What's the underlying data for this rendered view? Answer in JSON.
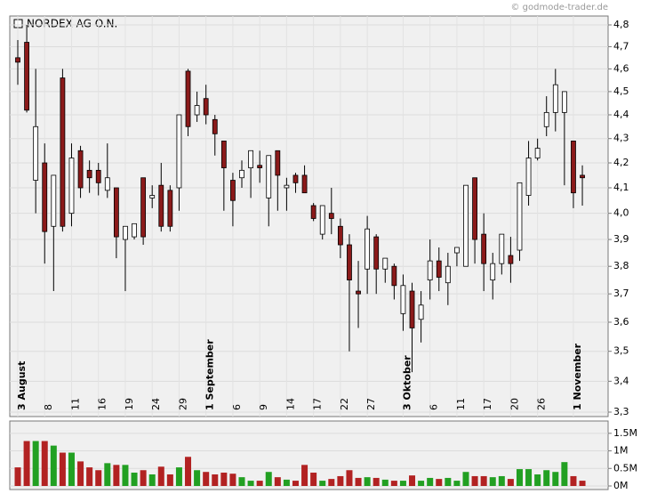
{
  "chart_data": [
    {
      "type": "candlestick",
      "name": "NORDEX AG O.N.",
      "watermark": "© godmode-trader.de",
      "log_scale": true,
      "grid": true,
      "color_up": "#ffffff",
      "color_down": "#8b1a1a",
      "outline": "#000000",
      "categories": [
        "3 August",
        null,
        null,
        "8",
        null,
        null,
        "11",
        null,
        null,
        "16",
        null,
        null,
        "19",
        null,
        null,
        "24",
        null,
        null,
        "29",
        null,
        null,
        "1 September",
        null,
        null,
        "6",
        null,
        null,
        "9",
        null,
        null,
        "14",
        null,
        null,
        "17",
        null,
        null,
        "22",
        null,
        null,
        "27",
        null,
        null,
        null,
        "3 Oktober",
        null,
        null,
        "6",
        null,
        null,
        "11",
        null,
        null,
        "17",
        null,
        null,
        "20",
        null,
        null,
        "26",
        null,
        null,
        null,
        "1 November",
        null
      ],
      "open": [
        4.65,
        4.72,
        4.13,
        4.2,
        3.95,
        4.56,
        4.0,
        4.25,
        4.17,
        4.17,
        4.09,
        4.1,
        3.9,
        3.91,
        4.14,
        4.06,
        4.11,
        4.09,
        4.1,
        4.59,
        4.4,
        4.47,
        4.38,
        4.29,
        4.13,
        4.14,
        4.18,
        4.19,
        4.06,
        4.25,
        4.1,
        4.15,
        4.15,
        4.03,
        3.92,
        4.0,
        3.95,
        3.88,
        3.71,
        3.79,
        3.91,
        3.79,
        3.8,
        3.63,
        3.71,
        3.61,
        3.75,
        3.82,
        3.74,
        3.85,
        3.8,
        4.14,
        3.92,
        3.75,
        3.81,
        3.84,
        3.86,
        4.07,
        4.22,
        4.35,
        4.41,
        4.41,
        4.29,
        4.15
      ],
      "high": [
        4.73,
        4.8,
        4.6,
        4.28,
        4.15,
        4.6,
        4.28,
        4.27,
        4.21,
        4.2,
        4.28,
        4.1,
        3.95,
        3.96,
        4.14,
        4.11,
        4.2,
        4.11,
        4.4,
        4.6,
        4.5,
        4.53,
        4.4,
        4.29,
        4.16,
        4.21,
        4.25,
        4.25,
        4.23,
        4.25,
        4.14,
        4.16,
        4.19,
        4.04,
        4.03,
        4.1,
        3.98,
        3.92,
        3.82,
        3.99,
        3.92,
        3.83,
        3.81,
        3.77,
        3.74,
        3.71,
        3.9,
        3.87,
        3.85,
        3.87,
        4.11,
        4.14,
        4.0,
        3.85,
        3.92,
        3.91,
        4.12,
        4.29,
        4.3,
        4.48,
        4.6,
        4.5,
        4.29,
        4.19
      ],
      "low": [
        4.53,
        4.41,
        4.0,
        3.81,
        3.71,
        3.93,
        3.95,
        4.06,
        4.08,
        4.07,
        4.06,
        3.83,
        3.71,
        3.9,
        3.88,
        4.02,
        3.93,
        3.93,
        4.01,
        4.31,
        4.37,
        4.36,
        4.23,
        4.01,
        3.95,
        4.1,
        4.06,
        4.12,
        3.95,
        4.01,
        4.01,
        4.08,
        4.08,
        3.97,
        3.9,
        3.92,
        3.83,
        3.5,
        3.58,
        3.7,
        3.7,
        3.74,
        3.68,
        3.57,
        3.43,
        3.53,
        3.68,
        3.71,
        3.66,
        3.8,
        3.8,
        3.81,
        3.71,
        3.68,
        3.77,
        3.74,
        3.82,
        4.03,
        4.21,
        4.31,
        4.33,
        4.11,
        4.02,
        4.03
      ],
      "close": [
        4.63,
        4.42,
        4.35,
        3.93,
        4.15,
        3.95,
        4.22,
        4.1,
        4.14,
        4.12,
        4.14,
        3.91,
        3.95,
        3.96,
        3.91,
        4.07,
        3.95,
        3.95,
        4.4,
        4.35,
        4.44,
        4.4,
        4.32,
        4.18,
        4.05,
        4.17,
        4.25,
        4.18,
        4.23,
        4.15,
        4.11,
        4.12,
        4.08,
        3.98,
        4.03,
        3.98,
        3.88,
        3.75,
        3.7,
        3.94,
        3.79,
        3.83,
        3.73,
        3.73,
        3.58,
        3.66,
        3.82,
        3.76,
        3.8,
        3.87,
        4.11,
        3.9,
        3.81,
        3.81,
        3.92,
        3.81,
        4.12,
        4.22,
        4.26,
        4.41,
        4.53,
        4.5,
        4.08,
        4.14
      ],
      "ylim": [
        3.3,
        4.8
      ],
      "yticks": [
        {
          "value": 3.3,
          "label": "3,3"
        },
        {
          "value": 3.4,
          "label": "3,4"
        },
        {
          "value": 3.5,
          "label": "3,5"
        },
        {
          "value": 3.6,
          "label": "3,6"
        },
        {
          "value": 3.7,
          "label": "3,7"
        },
        {
          "value": 3.8,
          "label": "3,8"
        },
        {
          "value": 3.9,
          "label": "3,9"
        },
        {
          "value": 4.0,
          "label": "4,0"
        },
        {
          "value": 4.1,
          "label": "4,1"
        },
        {
          "value": 4.2,
          "label": "4,2"
        },
        {
          "value": 4.3,
          "label": "4,3"
        },
        {
          "value": 4.4,
          "label": "4,4"
        },
        {
          "value": 4.5,
          "label": "4,5"
        },
        {
          "value": 4.6,
          "label": "4,6"
        },
        {
          "value": 4.7,
          "label": "4,7"
        },
        {
          "value": 4.8,
          "label": "4,8"
        }
      ]
    },
    {
      "type": "bar",
      "grid": true,
      "color_up": "#22a022",
      "color_down": "#b22222",
      "color_flat": "#999999",
      "values": [
        530000,
        1280000,
        1280000,
        1280000,
        1150000,
        950000,
        950000,
        700000,
        530000,
        450000,
        650000,
        600000,
        600000,
        380000,
        450000,
        330000,
        550000,
        330000,
        530000,
        830000,
        450000,
        400000,
        330000,
        380000,
        350000,
        250000,
        150000,
        150000,
        400000,
        250000,
        180000,
        150000,
        600000,
        380000,
        150000,
        200000,
        280000,
        450000,
        230000,
        250000,
        230000,
        180000,
        150000,
        150000,
        300000,
        150000,
        230000,
        200000,
        230000,
        150000,
        400000,
        280000,
        280000,
        250000,
        280000,
        200000,
        480000,
        480000,
        330000,
        450000,
        400000,
        680000,
        280000,
        150000
      ],
      "ylim": [
        0,
        1800000
      ],
      "yticks": [
        {
          "value": 0,
          "label": "0M"
        },
        {
          "value": 500000,
          "label": "0.5M"
        },
        {
          "value": 1000000,
          "label": "1M"
        },
        {
          "value": 1500000,
          "label": "1.5M"
        }
      ]
    }
  ]
}
